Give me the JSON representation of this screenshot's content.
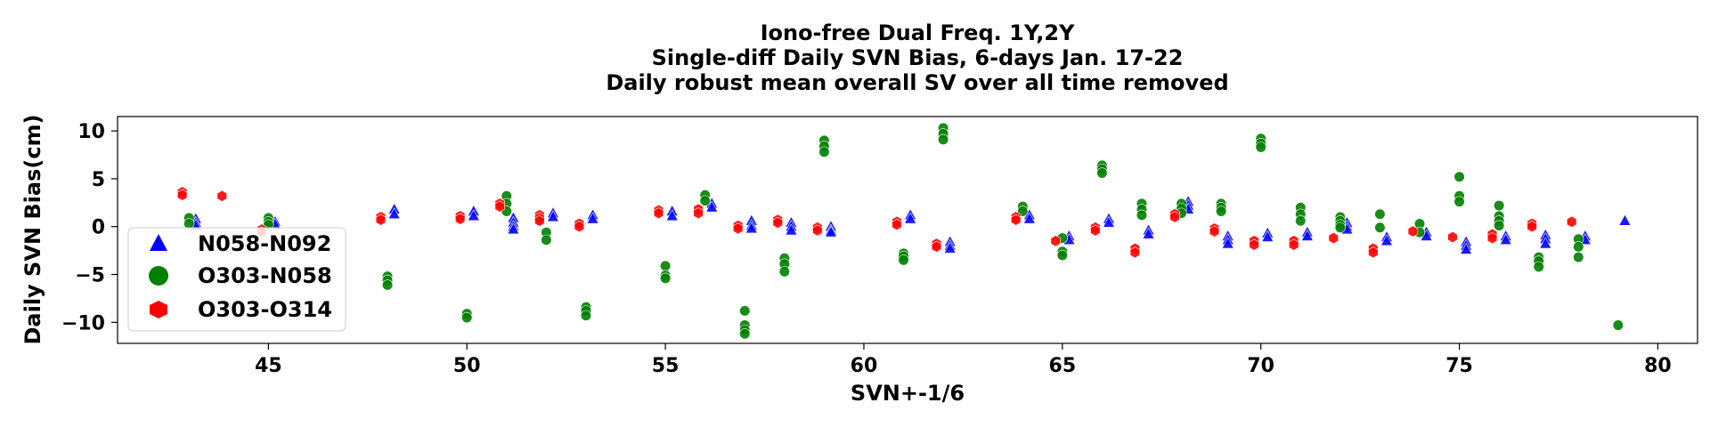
{
  "chart_data": {
    "type": "scatter",
    "title_lines": [
      "Iono-free Dual Freq. 1Y,2Y",
      "Single-diff Daily SVN Bias, 6-days Jan. 17-22",
      "Daily robust mean overall SV over all time removed"
    ],
    "xlabel": "SVN+-1/6",
    "ylabel": "Daily SVN Bias(cm)",
    "xlim": [
      41.2,
      81.0
    ],
    "ylim": [
      -12.2,
      11.5
    ],
    "xticks": [
      45,
      50,
      55,
      60,
      65,
      70,
      75,
      80
    ],
    "yticks": [
      10,
      5,
      0,
      -5,
      -10
    ],
    "grid": false,
    "legend_position": "lower-left",
    "series": [
      {
        "name": "N058-N092",
        "marker": "triangle",
        "color": "#0000ff",
        "x": [
          43.17,
          43.17,
          43.17,
          45.17,
          45.17,
          48.17,
          48.17,
          50.17,
          50.17,
          51.17,
          51.17,
          51.17,
          51.17,
          52.17,
          52.17,
          53.17,
          53.17,
          55.17,
          55.17,
          56.17,
          56.17,
          57.17,
          57.17,
          57.17,
          58.17,
          58.17,
          58.17,
          59.17,
          59.17,
          59.17,
          61.17,
          61.17,
          62.17,
          62.17,
          62.17,
          64.17,
          64.17,
          65.17,
          65.17,
          66.17,
          66.17,
          67.17,
          67.17,
          68.17,
          68.17,
          68.17,
          69.17,
          69.17,
          69.17,
          70.17,
          70.17,
          71.17,
          71.17,
          72.17,
          72.17,
          72.17,
          73.17,
          73.17,
          74.17,
          74.17,
          75.17,
          75.17,
          75.17,
          76.17,
          76.17,
          77.17,
          77.17,
          77.17,
          78.17,
          78.17,
          79.17
        ],
        "y": [
          0.8,
          0.4,
          0.1,
          0.5,
          0.2,
          1.8,
          1.3,
          1.6,
          1.1,
          0.9,
          0.4,
          0.0,
          -0.3,
          1.4,
          1.0,
          1.2,
          0.8,
          1.6,
          1.1,
          2.4,
          2.0,
          0.6,
          0.1,
          -0.2,
          0.4,
          0.0,
          -0.4,
          0.0,
          -0.4,
          -0.6,
          1.2,
          0.8,
          -1.6,
          -2.0,
          -2.3,
          1.2,
          0.8,
          -1.0,
          -1.4,
          0.8,
          0.4,
          -0.4,
          -0.8,
          2.6,
          2.2,
          1.8,
          -1.0,
          -1.4,
          -1.8,
          -0.7,
          -1.1,
          -0.6,
          -1.0,
          0.4,
          0.0,
          -0.3,
          -1.1,
          -1.5,
          -0.6,
          -1.0,
          -1.6,
          -2.0,
          -2.4,
          -1.0,
          -1.4,
          -0.9,
          -1.3,
          -1.8,
          -1.0,
          -1.4,
          0.6
        ]
      },
      {
        "name": "O303-N058",
        "marker": "circle",
        "color": "#008000",
        "x": [
          43.0,
          43.0,
          45.0,
          45.0,
          45.0,
          48.0,
          48.0,
          48.0,
          50.0,
          50.0,
          51.0,
          51.0,
          51.0,
          52.0,
          52.0,
          53.0,
          53.0,
          53.0,
          55.0,
          55.0,
          55.0,
          56.0,
          56.0,
          57.0,
          57.0,
          57.0,
          57.0,
          58.0,
          58.0,
          58.0,
          59.0,
          59.0,
          59.0,
          61.0,
          61.0,
          61.0,
          62.0,
          62.0,
          62.0,
          64.0,
          64.0,
          65.0,
          65.0,
          65.0,
          66.0,
          66.0,
          66.0,
          67.0,
          67.0,
          67.0,
          68.0,
          68.0,
          68.0,
          69.0,
          69.0,
          69.0,
          70.0,
          70.0,
          70.0,
          71.0,
          71.0,
          71.0,
          72.0,
          72.0,
          72.0,
          72.0,
          73.0,
          73.0,
          74.0,
          74.0,
          75.0,
          75.0,
          75.0,
          76.0,
          76.0,
          76.0,
          76.0,
          77.0,
          77.0,
          77.0,
          78.0,
          78.0,
          78.0,
          79.0
        ],
        "y": [
          0.9,
          0.3,
          0.9,
          0.5,
          0.2,
          -5.2,
          -5.6,
          -6.1,
          -9.1,
          -9.5,
          3.2,
          2.4,
          1.6,
          -0.6,
          -1.4,
          -8.4,
          -8.8,
          -9.3,
          -4.1,
          -5.1,
          -5.4,
          3.3,
          2.7,
          -8.8,
          -10.3,
          -10.8,
          -11.2,
          -3.3,
          -3.9,
          -4.7,
          9.0,
          8.4,
          7.8,
          -2.8,
          -3.1,
          -3.5,
          10.3,
          9.7,
          9.1,
          2.1,
          1.6,
          -1.2,
          -2.6,
          -3.0,
          6.4,
          6.0,
          5.6,
          2.4,
          1.8,
          1.2,
          2.4,
          1.9,
          1.4,
          2.4,
          2.0,
          1.6,
          9.2,
          8.7,
          8.3,
          2.0,
          1.3,
          0.6,
          1.0,
          0.6,
          0.2,
          -0.1,
          1.3,
          -0.1,
          0.3,
          -0.6,
          5.2,
          3.2,
          2.6,
          2.2,
          1.1,
          0.6,
          0.1,
          -3.2,
          -3.6,
          -4.2,
          -1.3,
          -2.1,
          -3.2,
          -10.3
        ]
      },
      {
        "name": "O303-O314",
        "marker": "hexagon",
        "color": "#ff0000",
        "x": [
          42.83,
          42.83,
          43.83,
          44.83,
          44.83,
          47.83,
          47.83,
          49.83,
          49.83,
          50.83,
          50.83,
          51.83,
          51.83,
          51.83,
          52.83,
          52.83,
          54.83,
          54.83,
          55.83,
          55.83,
          56.83,
          56.83,
          57.83,
          57.83,
          58.83,
          58.83,
          60.83,
          60.83,
          61.83,
          61.83,
          63.83,
          63.83,
          64.83,
          65.83,
          65.83,
          66.83,
          66.83,
          67.83,
          67.83,
          68.83,
          68.83,
          69.83,
          69.83,
          70.83,
          70.83,
          71.83,
          72.83,
          72.83,
          73.83,
          74.83,
          75.83,
          75.83,
          76.83,
          76.83,
          77.83
        ],
        "y": [
          3.6,
          3.3,
          3.2,
          -0.3,
          -0.6,
          1.0,
          0.7,
          1.1,
          0.8,
          2.4,
          2.1,
          1.2,
          0.9,
          0.6,
          0.3,
          0.0,
          1.7,
          1.4,
          1.8,
          1.4,
          0.1,
          -0.2,
          0.7,
          0.4,
          -0.1,
          -0.4,
          0.5,
          0.2,
          -1.8,
          -2.1,
          1.0,
          0.7,
          -1.5,
          -0.1,
          -0.4,
          -2.3,
          -2.7,
          1.3,
          1.0,
          -0.2,
          -0.5,
          -1.5,
          -1.9,
          -1.5,
          -1.9,
          -1.2,
          -2.3,
          -2.7,
          -0.5,
          -1.1,
          -0.8,
          -1.2,
          0.3,
          0.0,
          0.5
        ]
      }
    ]
  }
}
